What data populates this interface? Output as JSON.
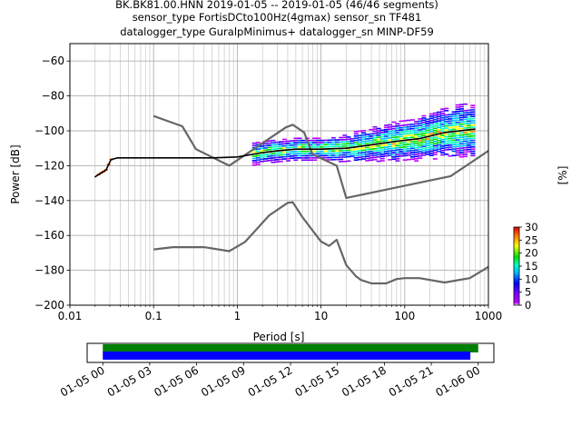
{
  "title": {
    "line1": "BK.BK81.00.HNN   2019-01-05 -- 2019-01-05  (46/46 segments)",
    "line2": "sensor_type FortisDCto100Hz(4gmax) sensor_sn TF481",
    "line3": "datalogger_type GuralpMinimus+ datalogger_sn MINP-DF59"
  },
  "chart_data": {
    "type": "line",
    "xlabel": "Period [s]",
    "ylabel": "Power [dB]",
    "xscale": "log",
    "xlim": [
      0.01,
      1000
    ],
    "ylim": [
      -200,
      -50
    ],
    "xticks": [
      {
        "v": 0.01,
        "label": "0.01"
      },
      {
        "v": 0.1,
        "label": "0.1"
      },
      {
        "v": 1,
        "label": "1"
      },
      {
        "v": 10,
        "label": "10"
      },
      {
        "v": 100,
        "label": "100"
      },
      {
        "v": 1000,
        "label": "1000"
      }
    ],
    "yticks": [
      {
        "v": -60,
        "label": "−60"
      },
      {
        "v": -80,
        "label": "−80"
      },
      {
        "v": -100,
        "label": "−100"
      },
      {
        "v": -120,
        "label": "−120"
      },
      {
        "v": -140,
        "label": "−140"
      },
      {
        "v": -160,
        "label": "−160"
      },
      {
        "v": -180,
        "label": "−180"
      },
      {
        "v": -200,
        "label": "−200"
      }
    ],
    "grid": true,
    "series": [
      {
        "color": "#666666",
        "points": [
          [
            0.1,
            -91.5
          ],
          [
            0.22,
            -97.4
          ],
          [
            0.32,
            -110.5
          ],
          [
            0.8,
            -120.0
          ],
          [
            3.8,
            -98.0
          ],
          [
            4.6,
            -96.5
          ],
          [
            6.3,
            -101.0
          ],
          [
            7.9,
            -113.5
          ],
          [
            15.4,
            -120.0
          ],
          [
            20.0,
            -138.5
          ],
          [
            354,
            -126.0
          ],
          [
            1000,
            -111.5
          ]
        ]
      },
      {
        "color": "#666666",
        "points": [
          [
            0.1,
            -168.0
          ],
          [
            0.17,
            -166.7
          ],
          [
            0.4,
            -166.7
          ],
          [
            0.8,
            -169.0
          ],
          [
            1.24,
            -163.7
          ],
          [
            2.4,
            -148.5
          ],
          [
            4.0,
            -141.3
          ],
          [
            4.6,
            -141.0
          ],
          [
            6.0,
            -149.5
          ],
          [
            10.0,
            -163.5
          ],
          [
            12.5,
            -166.0
          ],
          [
            15.4,
            -162.5
          ],
          [
            20.0,
            -177.0
          ],
          [
            26.3,
            -183.5
          ],
          [
            30.0,
            -185.5
          ],
          [
            40.0,
            -187.5
          ],
          [
            60.0,
            -187.5
          ],
          [
            80.0,
            -185.0
          ],
          [
            100.0,
            -184.5
          ],
          [
            150.0,
            -184.5
          ],
          [
            300.0,
            -187.0
          ],
          [
            600.0,
            -184.5
          ],
          [
            1000,
            -178.0
          ]
        ]
      },
      {
        "color": "#000000",
        "points": [
          [
            0.0198,
            -126.5
          ],
          [
            0.023,
            -124.5
          ],
          [
            0.027,
            -122.5
          ],
          [
            0.031,
            -116.5
          ],
          [
            0.037,
            -115.5
          ],
          [
            0.1,
            -115.5
          ],
          [
            0.5,
            -115.5
          ],
          [
            1.0,
            -115.0
          ],
          [
            2.0,
            -112.5
          ],
          [
            3.0,
            -111.5
          ],
          [
            5.0,
            -110.5
          ],
          [
            10.0,
            -110.5
          ],
          [
            20.0,
            -110.0
          ],
          [
            40.0,
            -108.0
          ],
          [
            80.0,
            -106.0
          ],
          [
            150.0,
            -104.5
          ],
          [
            300.0,
            -101.0
          ],
          [
            700.0,
            -99.0
          ]
        ]
      }
    ],
    "colorbar": {
      "label": "[%]",
      "range": [
        0,
        30
      ],
      "ticks": [
        {
          "v": 0,
          "label": "0"
        },
        {
          "v": 5,
          "label": "5"
        },
        {
          "v": 10,
          "label": "10"
        },
        {
          "v": 15,
          "label": "15"
        },
        {
          "v": 20,
          "label": "20"
        },
        {
          "v": 25,
          "label": "25"
        },
        {
          "v": 30,
          "label": "30"
        }
      ]
    }
  },
  "timeline": {
    "xlim_hours": [
      -1,
      25
    ],
    "ticks": [
      {
        "h": 0,
        "label": "01-05 00"
      },
      {
        "h": 3,
        "label": "01-05 03"
      },
      {
        "h": 6,
        "label": "01-05 06"
      },
      {
        "h": 9,
        "label": "01-05 09"
      },
      {
        "h": 12,
        "label": "01-05 12"
      },
      {
        "h": 15,
        "label": "01-05 15"
      },
      {
        "h": 18,
        "label": "01-05 18"
      },
      {
        "h": 21,
        "label": "01-05 21"
      },
      {
        "h": 24,
        "label": "01-06 00"
      }
    ],
    "bars": [
      {
        "color": "#008000",
        "start": 0,
        "end": 24
      },
      {
        "color": "#0000ff",
        "start": 0,
        "end": 23.5
      }
    ]
  }
}
